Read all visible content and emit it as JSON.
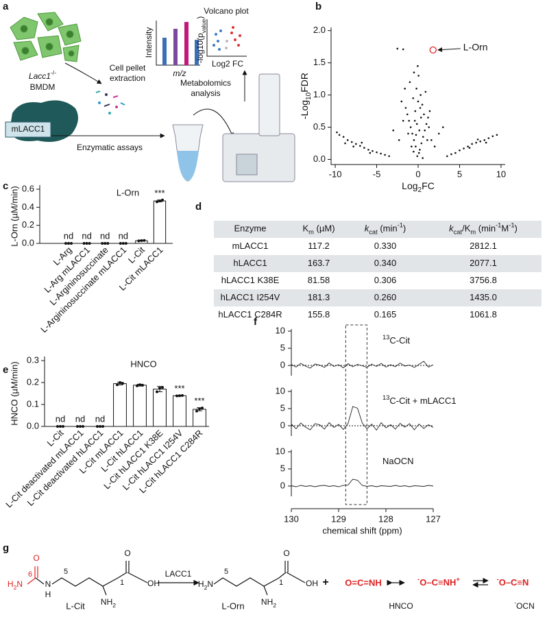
{
  "panel_labels": [
    "a",
    "b",
    "c",
    "d",
    "e",
    "f",
    "g"
  ],
  "schematic": {
    "cell_label": [
      {
        "text": "Lacc1",
        "style": "italic"
      },
      {
        "text": "-/-",
        "style": "sup"
      }
    ],
    "cell_type": "BMDM",
    "extraction": [
      "Cell pellet",
      "extraction"
    ],
    "enzyme": "mLACC1",
    "assay": "Enzymatic assays",
    "analysis": [
      "Metabolomics",
      "analysis"
    ],
    "volcano_title": "Volcano plot",
    "intensity_label": "Intensity",
    "mz_label": [
      {
        "text": "m/z",
        "style": "italic"
      }
    ],
    "pvalue_label": [
      {
        "text": "-log10(p"
      },
      {
        "text": "value",
        "style": "sub"
      },
      {
        "text": ")"
      }
    ],
    "fc_label": "Log2 FC"
  },
  "chart_data": [
    {
      "type": "scatter",
      "xlabel": [
        {
          "text": "Log"
        },
        {
          "text": "2",
          "style": "sub"
        },
        {
          "text": "FC"
        }
      ],
      "ylabel": [
        {
          "text": "-Log"
        },
        {
          "text": "10",
          "style": "sub"
        },
        {
          "text": "FDR"
        }
      ],
      "color": "#111111",
      "x": [
        -0.1,
        0.1,
        0.2,
        -0.3,
        0.4,
        -0.5,
        0.6,
        -0.7,
        0.8,
        -0.9,
        1.0,
        -1.1,
        1.2,
        -1.3,
        1.4,
        -1.5,
        0.0,
        0.3,
        -0.2,
        0.5,
        -0.6,
        0.9,
        -1.0,
        1.1,
        -0.4,
        0.7,
        -0.8,
        1.3,
        -1.2,
        0.15,
        -0.15,
        0.35,
        -0.35,
        0.55,
        -0.55,
        0.05,
        -0.05,
        0.25,
        -0.25,
        -2.5,
        -1.8,
        -0.5,
        -1.6,
        -2,
        2.5,
        -3,
        3,
        1.6,
        -1.8,
        2,
        -2.3,
        -9.5,
        -9,
        -8.5,
        -8,
        -7.5,
        -7,
        -6.5,
        -6,
        -5.5,
        -5,
        -4.5,
        -4,
        -8.8,
        -7.8,
        -6.8,
        -5.8,
        -3.5,
        -9.8,
        9.5,
        9,
        8.5,
        8,
        7.5,
        7,
        6.5,
        6,
        5.5,
        5,
        4.5,
        4,
        3.5,
        8.2,
        7.2,
        6.2
      ],
      "y": [
        0.05,
        0.1,
        0.15,
        0.2,
        0.25,
        0.3,
        0.35,
        0.4,
        0.45,
        0.5,
        0.55,
        0.6,
        0.65,
        0.7,
        0.75,
        0.8,
        0.9,
        1.0,
        1.1,
        0.85,
        0.95,
        1.05,
        1.2,
        0.3,
        0.6,
        0.7,
        0.2,
        0.5,
        0.4,
        0.45,
        0.55,
        0.65,
        0.75,
        0.02,
        0.12,
        1.3,
        1.45,
        0.8,
        0.38,
        1.72,
        1.71,
        1.35,
        1.1,
        0.9,
        0.4,
        0.45,
        0.5,
        0.3,
        0.6,
        0.2,
        0.3,
        0.38,
        0.35,
        0.3,
        0.27,
        0.24,
        0.21,
        0.18,
        0.15,
        0.13,
        0.11,
        0.09,
        0.07,
        0.25,
        0.2,
        0.26,
        0.1,
        0.05,
        0.42,
        0.38,
        0.36,
        0.33,
        0.3,
        0.28,
        0.26,
        0.24,
        0.2,
        0.17,
        0.14,
        0.1,
        0.08,
        0.05,
        0.26,
        0.31,
        0.18
      ],
      "annotation": {
        "text": "L-Orn",
        "x": 1.8,
        "y": 1.7,
        "color": "#e02020"
      },
      "xlim": [
        -10.5,
        10.5
      ],
      "ylim": [
        -0.08,
        2.05
      ],
      "xticks": [
        -10,
        -5,
        0,
        5,
        10
      ],
      "yticks": [
        {
          "value": 0,
          "label": "0.0"
        },
        {
          "value": 0.5,
          "label": "0.5"
        },
        {
          "value": 1,
          "label": "1.0"
        },
        {
          "value": 1.5,
          "label": "1.5"
        },
        {
          "value": 2,
          "label": "2.0"
        }
      ]
    },
    {
      "type": "bar",
      "title": "L-Orn",
      "ylabel": "L-Orn (µM/min)",
      "color": "#ffffff",
      "categories": [
        "L-Arg",
        "L-Arg mLACC1",
        "L-Argininosuccinate",
        "L-Argininosuccinate mLACC1",
        "L-Cit",
        "L-Cit mLACC1"
      ],
      "values": [
        null,
        null,
        null,
        null,
        0.03,
        0.47
      ],
      "errors": [
        null,
        null,
        null,
        null,
        0.003,
        0.01
      ],
      "value_labels": [
        "nd",
        "nd",
        "nd",
        "nd",
        null,
        null
      ],
      "replicates": [
        [
          0,
          0,
          0
        ],
        [
          0,
          0,
          0
        ],
        [
          0,
          0,
          0
        ],
        [
          0,
          0,
          0
        ],
        [
          0.028,
          0.03,
          0.032
        ],
        [
          0.46,
          0.47,
          0.48
        ]
      ],
      "significance": [
        null,
        null,
        null,
        null,
        null,
        "***"
      ],
      "ylim": [
        0,
        0.6
      ],
      "yticks": [
        {
          "value": 0,
          "label": "0.0"
        },
        {
          "value": 0.2,
          "label": "0.2"
        },
        {
          "value": 0.4,
          "label": "0.4"
        },
        {
          "value": 0.6,
          "label": "0.6"
        }
      ]
    },
    {
      "type": "bar",
      "title": "HNCO",
      "ylabel": "HNCO (µM/min)",
      "color": "#ffffff",
      "categories": [
        "L-Cit",
        "L-Cit deactivated mLACC1",
        "L-Cit deactivated hLACC1",
        "L-Cit mLACC1",
        "L-Cit hLACC1",
        "L-Cit hLACC1 K38E",
        "L-Cit hLACC1 I254V",
        "L-Cit hLACC1 C284R"
      ],
      "values": [
        null,
        null,
        null,
        0.195,
        0.188,
        0.17,
        0.14,
        0.078
      ],
      "errors": [
        null,
        null,
        null,
        0.006,
        0.004,
        0.012,
        0.002,
        0.007
      ],
      "value_labels": [
        "nd",
        "nd",
        "nd",
        null,
        null,
        null,
        null,
        null
      ],
      "replicates": [
        [
          0,
          0,
          0
        ],
        [
          0,
          0,
          0
        ],
        [
          0,
          0,
          0
        ],
        [
          0.19,
          0.2,
          0.196
        ],
        [
          0.185,
          0.19,
          0.188
        ],
        [
          0.158,
          0.175,
          0.178
        ],
        [
          0.139,
          0.14,
          0.141
        ],
        [
          0.07,
          0.08,
          0.084
        ]
      ],
      "significance": [
        null,
        null,
        null,
        null,
        null,
        null,
        "***",
        "***"
      ],
      "ylim": [
        0,
        0.3
      ],
      "yticks": [
        {
          "value": 0,
          "label": "0.0"
        },
        {
          "value": 0.1,
          "label": "0.1"
        },
        {
          "value": 0.2,
          "label": "0.2"
        },
        {
          "value": 0.3,
          "label": "0.3"
        }
      ]
    },
    {
      "type": "line",
      "xlabel": "chemical shift (ppm)",
      "x": [
        130.0,
        129.9,
        129.8,
        129.7,
        129.6,
        129.5,
        129.4,
        129.3,
        129.2,
        129.1,
        129.0,
        128.9,
        128.8,
        128.7,
        128.6,
        128.5,
        128.4,
        128.3,
        128.2,
        128.1,
        128.0,
        127.9,
        127.8,
        127.7,
        127.6,
        127.5,
        127.4,
        127.3,
        127.2,
        127.1,
        127.0
      ],
      "series": [
        {
          "name": [
            {
              "text": "13",
              "style": "sup"
            },
            {
              "text": "C-Cit"
            }
          ],
          "color": "#222222",
          "zero_line": true,
          "values": [
            0.3,
            -0.5,
            0.6,
            -0.2,
            -0.8,
            0.4,
            0.1,
            -0.6,
            0.7,
            -0.3,
            0.2,
            -0.7,
            0.5,
            -0.4,
            0.3,
            -0.1,
            -0.6,
            0.4,
            -0.3,
            0.6,
            -0.5,
            0.2,
            -0.4,
            0.7,
            -0.2,
            0.1,
            -0.6,
            0.3,
            1.2,
            -0.5,
            0.2
          ]
        },
        {
          "name": [
            {
              "text": "13",
              "style": "sup"
            },
            {
              "text": "C-Cit + mLACC1"
            }
          ],
          "color": "#222222",
          "zero_line": true,
          "values": [
            0.5,
            -0.9,
            0.8,
            -0.4,
            -1.2,
            0.6,
            0.3,
            -1.0,
            0.9,
            -0.5,
            0.4,
            -1.1,
            0.7,
            5.6,
            5.1,
            0.8,
            -0.9,
            0.5,
            -1.3,
            0.9,
            -0.6,
            0.3,
            -1.0,
            0.7,
            -0.4,
            0.6,
            -1.2,
            0.5,
            -0.8,
            0.3,
            -0.5
          ]
        },
        {
          "name": [
            {
              "text": "NaOCN"
            }
          ],
          "color": "#222222",
          "zero_line": false,
          "values": [
            0.1,
            -0.2,
            0.2,
            -0.1,
            0.1,
            -0.2,
            0.1,
            0.2,
            -0.1,
            0.1,
            -0.2,
            0.2,
            0.3,
            2.0,
            1.7,
            0.2,
            -0.1,
            0.1,
            -0.2,
            0.1,
            0.0,
            -0.1,
            0.2,
            -0.1,
            0.1,
            -0.2,
            0.1,
            0.0,
            -0.1,
            0.2,
            0.0
          ]
        }
      ],
      "highlight": [
        128.85,
        128.4
      ],
      "xlim": [
        130,
        127
      ],
      "xticks": [
        130,
        129,
        128,
        127
      ],
      "ylim": [
        -3,
        11
      ],
      "yticks": [
        0,
        5,
        10
      ]
    }
  ],
  "table": {
    "header": [
      [
        {
          "text": "Enzyme"
        }
      ],
      [
        {
          "text": "K"
        },
        {
          "text": "m",
          "style": "sub"
        },
        {
          "text": " (µM)"
        }
      ],
      [
        {
          "text": "k",
          "style": "italic"
        },
        {
          "text": "cat",
          "style": "sub"
        },
        {
          "text": " (min"
        },
        {
          "text": "-1",
          "style": "sup"
        },
        {
          "text": ")"
        }
      ],
      [
        {
          "text": "k",
          "style": "italic"
        },
        {
          "text": "cat",
          "style": "sub"
        },
        {
          "text": "/K"
        },
        {
          "text": "m",
          "style": "sub"
        },
        {
          "text": " (min"
        },
        {
          "text": "-1",
          "style": "sup"
        },
        {
          "text": "M"
        },
        {
          "text": "-1",
          "style": "sup"
        },
        {
          "text": ")"
        }
      ]
    ],
    "rows": [
      [
        "mLACC1",
        "117.2",
        "0.330",
        "2812.1"
      ],
      [
        "hLACC1",
        "163.7",
        "0.340",
        "2077.1"
      ],
      [
        "hLACC1 K38E",
        "81.58",
        "0.306",
        "3756.8"
      ],
      [
        "hLACC1 I254V",
        "181.3",
        "0.260",
        "1435.0"
      ],
      [
        "hLACC1 C284R",
        "155.8",
        "0.165",
        "1061.8"
      ]
    ],
    "stripe_color": "#e2e5e8"
  },
  "scheme": {
    "cit_o": "O",
    "cit_amine": [
      {
        "text": "H"
      },
      {
        "text": "2",
        "style": "sub"
      },
      {
        "text": "N"
      }
    ],
    "cit_c6": "6",
    "cit_n": "N",
    "cit_nh": "H",
    "cit_c5": "5",
    "cit_c1": "1",
    "cit_co": "O",
    "cit_oh": "OH",
    "cit_nh2": [
      {
        "text": "NH"
      },
      {
        "text": "2",
        "style": "sub"
      }
    ],
    "cit_name": "L-Cit",
    "enzyme": "LACC1",
    "orn_amine": [
      {
        "text": "H"
      },
      {
        "text": "2",
        "style": "sub"
      },
      {
        "text": "N"
      }
    ],
    "orn_c5": "5",
    "orn_c1": "1",
    "orn_co": "O",
    "orn_oh": "OH",
    "orn_nh2": [
      {
        "text": "NH"
      },
      {
        "text": "2",
        "style": "sub"
      }
    ],
    "orn_name": "L-Orn",
    "plus": "+",
    "hnco_form": "O=C=NH",
    "cyanate_form": [
      {
        "text": "-",
        "style": "sup"
      },
      {
        "text": "O–C≡NH"
      },
      {
        "text": "+",
        "style": "sup"
      }
    ],
    "cyanate_ion": [
      {
        "text": "-",
        "style": "sup"
      },
      {
        "text": "O–C≡N"
      }
    ],
    "hnco_name": "HNCO",
    "ocn_name": [
      {
        "text": "-",
        "style": "sup"
      },
      {
        "text": "OCN"
      }
    ]
  }
}
